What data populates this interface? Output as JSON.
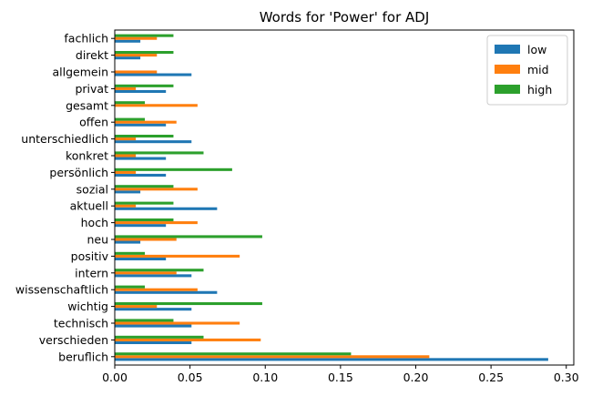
{
  "chart_data": {
    "type": "bar",
    "orientation": "horizontal",
    "title": "Words for 'Power' for ADJ",
    "xlabel": "",
    "ylabel": "",
    "xlim": [
      0,
      0.305
    ],
    "xticks": [
      "0.00",
      "0.05",
      "0.10",
      "0.15",
      "0.20",
      "0.25",
      "0.30"
    ],
    "xtick_values": [
      0,
      0.05,
      0.1,
      0.15,
      0.2,
      0.25,
      0.3
    ],
    "grid": false,
    "legend_position": "upper-right",
    "categories": [
      "beruflich",
      "verschieden",
      "technisch",
      "wichtig",
      "wissenschaftlich",
      "intern",
      "positiv",
      "neu",
      "hoch",
      "aktuell",
      "sozial",
      "persönlich",
      "konkret",
      "unterschiedlich",
      "offen",
      "gesamt",
      "privat",
      "allgemein",
      "direkt",
      "fachlich"
    ],
    "series": [
      {
        "name": "low",
        "color": "#1f77b4",
        "values": [
          0.288,
          0.051,
          0.051,
          0.051,
          0.068,
          0.051,
          0.034,
          0.017,
          0.034,
          0.068,
          0.017,
          0.034,
          0.034,
          0.051,
          0.034,
          0.0,
          0.034,
          0.051,
          0.017,
          0.017
        ]
      },
      {
        "name": "mid",
        "color": "#ff7f0e",
        "values": [
          0.209,
          0.097,
          0.083,
          0.028,
          0.055,
          0.041,
          0.083,
          0.041,
          0.055,
          0.014,
          0.055,
          0.014,
          0.014,
          0.014,
          0.041,
          0.055,
          0.014,
          0.028,
          0.028,
          0.028
        ]
      },
      {
        "name": "high",
        "color": "#2ca02c",
        "values": [
          0.157,
          0.059,
          0.039,
          0.098,
          0.02,
          0.059,
          0.02,
          0.098,
          0.039,
          0.039,
          0.039,
          0.078,
          0.059,
          0.039,
          0.02,
          0.02,
          0.039,
          0.0,
          0.039,
          0.039
        ]
      }
    ]
  }
}
